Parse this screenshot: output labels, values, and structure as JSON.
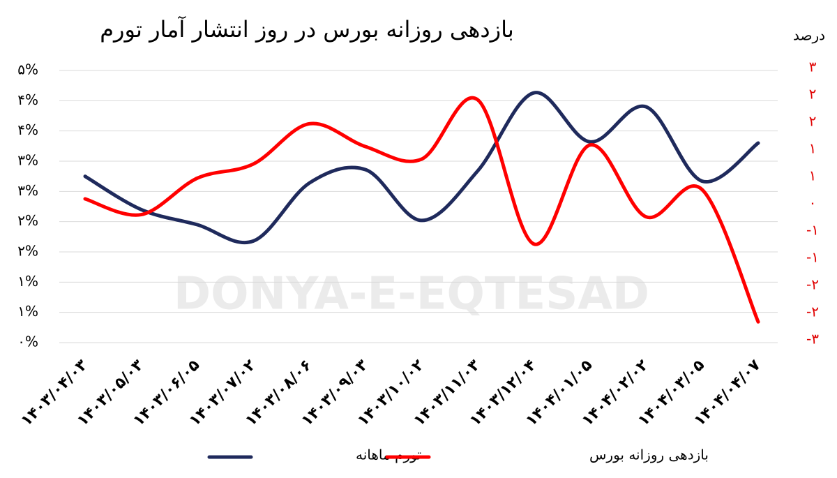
{
  "chart_data": {
    "type": "line",
    "title": "بازدهی روزانه بورس در روز انتشار آمار تورم",
    "y2_label": "درصد",
    "watermark": "DONYA-E-EQTESAD",
    "categories": [
      "۱۴۰۳/۰۴/۰۳",
      "۱۴۰۳/۰۵/۰۳",
      "۱۴۰۳/۰۶/۰۵",
      "۱۴۰۳/۰۷/۰۲",
      "۱۴۰۳/۰۸/۰۶",
      "۱۴۰۳/۰۹/۰۳",
      "۱۴۰۳/۱۰/۰۲",
      "۱۴۰۳/۱۱/۰۳",
      "۱۴۰۳/۱۲/۰۴",
      "۱۴۰۴/۰۱/۰۵",
      "۱۴۰۴/۰۲/۰۲",
      "۱۴۰۴/۰۳/۰۵",
      "۱۴۰۴/۰۴/۰۷"
    ],
    "series": [
      {
        "name": "تورم ماهانه",
        "color": "#1f2a5c",
        "values": [
          2.75,
          2.2,
          1.95,
          1.68,
          2.64,
          2.86,
          2.02,
          2.84,
          4.13,
          3.32,
          3.9,
          2.67,
          3.3
        ]
      },
      {
        "name": "بازدهی روزانه بورس",
        "color": "#ff0000",
        "axis": "y2",
        "values": [
          0.09,
          -0.2,
          0.47,
          0.73,
          1.47,
          1.05,
          0.82,
          1.91,
          -0.74,
          1.08,
          -0.24,
          0.26,
          -2.17
        ]
      }
    ],
    "ylim": [
      0,
      4.5
    ],
    "yticks": [
      {
        "value": 0,
        "label": "۰%"
      },
      {
        "value": 0.5,
        "label": "۱%"
      },
      {
        "value": 1,
        "label": "۱%"
      },
      {
        "value": 1.5,
        "label": "۲%"
      },
      {
        "value": 2,
        "label": "۲%"
      },
      {
        "value": 2.5,
        "label": "۳%"
      },
      {
        "value": 3,
        "label": "۳%"
      },
      {
        "value": 3.5,
        "label": "۴%"
      },
      {
        "value": 4,
        "label": "۴%"
      },
      {
        "value": 4.5,
        "label": "۵%"
      }
    ],
    "y2lim": [
      -2.5,
      2.5
    ],
    "y2ticks": [
      {
        "value": -2.5,
        "label": "-۳"
      },
      {
        "value": -2,
        "label": "-۲"
      },
      {
        "value": -1.5,
        "label": "-۲"
      },
      {
        "value": -1,
        "label": "-۱"
      },
      {
        "value": -0.5,
        "label": "-۱"
      },
      {
        "value": 0,
        "label": "۰"
      },
      {
        "value": 0.5,
        "label": "۱"
      },
      {
        "value": 1,
        "label": "۱"
      },
      {
        "value": 1.5,
        "label": "۲"
      },
      {
        "value": 2,
        "label": "۲"
      },
      {
        "value": 2.5,
        "label": "۳"
      }
    ],
    "grid": true
  }
}
